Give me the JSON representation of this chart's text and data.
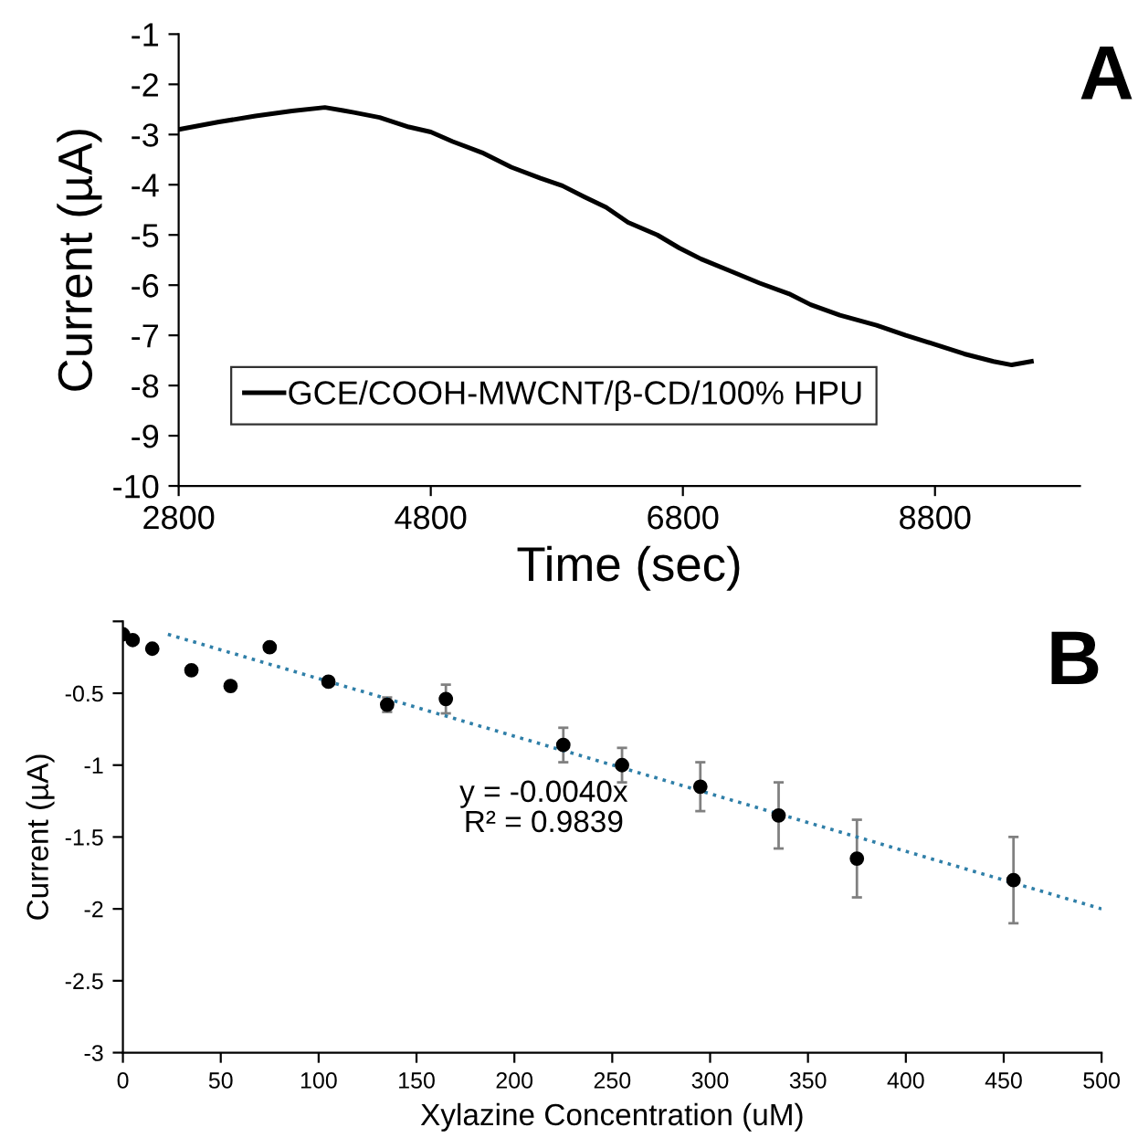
{
  "chart_data": [
    {
      "type": "line",
      "xlabel": "Time (sec)",
      "ylabel": "Current (µA)",
      "xlim": [
        2800,
        9950
      ],
      "xticks": [
        2800,
        4800,
        6800,
        8800
      ],
      "ylim": [
        -10,
        -1
      ],
      "yticks": [
        -10,
        -9,
        -8,
        -7,
        -6,
        -5,
        -4,
        -3,
        -2,
        -1
      ],
      "legend": "bottom left",
      "grid": false,
      "annotations": [
        "A"
      ],
      "x": [
        2800,
        3119,
        3409,
        3699,
        3960,
        4104,
        4190,
        4394,
        4626,
        4800,
        4974,
        5206,
        5438,
        5670,
        5844,
        6017,
        6191,
        6365,
        6597,
        6771,
        6945,
        7177,
        7409,
        7640,
        7814,
        8046,
        8336,
        8568,
        8800,
        9032,
        9264,
        9409,
        9565
      ],
      "series": [
        {
          "name": "GCE/COOH-MWCNT/β-CD/100% HPU",
          "color": "#000000",
          "values": [
            -2.9,
            -2.75,
            -2.63,
            -2.53,
            -2.46,
            -2.52,
            -2.56,
            -2.66,
            -2.85,
            -2.95,
            -3.14,
            -3.36,
            -3.65,
            -3.87,
            -4.02,
            -4.24,
            -4.45,
            -4.75,
            -5.0,
            -5.26,
            -5.48,
            -5.72,
            -5.96,
            -6.17,
            -6.39,
            -6.6,
            -6.8,
            -7.0,
            -7.18,
            -7.37,
            -7.52,
            -7.59,
            -7.52
          ]
        }
      ]
    },
    {
      "type": "scatter",
      "xlabel": "Xylazine Concentration (uM)",
      "ylabel": "Current (µA)",
      "xlim": [
        0,
        500
      ],
      "xticks": [
        0,
        50,
        100,
        150,
        200,
        250,
        300,
        350,
        400,
        450,
        500
      ],
      "ylim": [
        -3,
        0
      ],
      "yticks": [
        -3,
        -2.5,
        -2,
        -1.5,
        -1,
        -0.5,
        {
          "value": 0,
          "label": null
        }
      ],
      "grid": false,
      "legend": false,
      "marker": "circle",
      "annotations": [
        "B",
        "y = -0.0040x",
        "R² = 0.9839"
      ],
      "series": [
        {
          "color": "#000000",
          "x": [
            0,
            5,
            15,
            35,
            55,
            75,
            105,
            135,
            165,
            225,
            255,
            295,
            335,
            375,
            455
          ],
          "values": [
            -0.09,
            -0.13,
            -0.19,
            -0.34,
            -0.45,
            -0.18,
            -0.42,
            -0.58,
            -0.54,
            -0.86,
            -1.0,
            -1.15,
            -1.35,
            -1.65,
            -1.8
          ],
          "errors": [
            null,
            null,
            null,
            null,
            null,
            null,
            null,
            0.05,
            0.1,
            0.12,
            0.12,
            0.17,
            0.23,
            0.27,
            0.3
          ]
        },
        {
          "type": "line",
          "line_style": "dotted",
          "marker": "none",
          "color": "#2f7fa8",
          "x": [
            23,
            500
          ],
          "values": [
            -0.09,
            -2.0
          ]
        }
      ]
    }
  ]
}
